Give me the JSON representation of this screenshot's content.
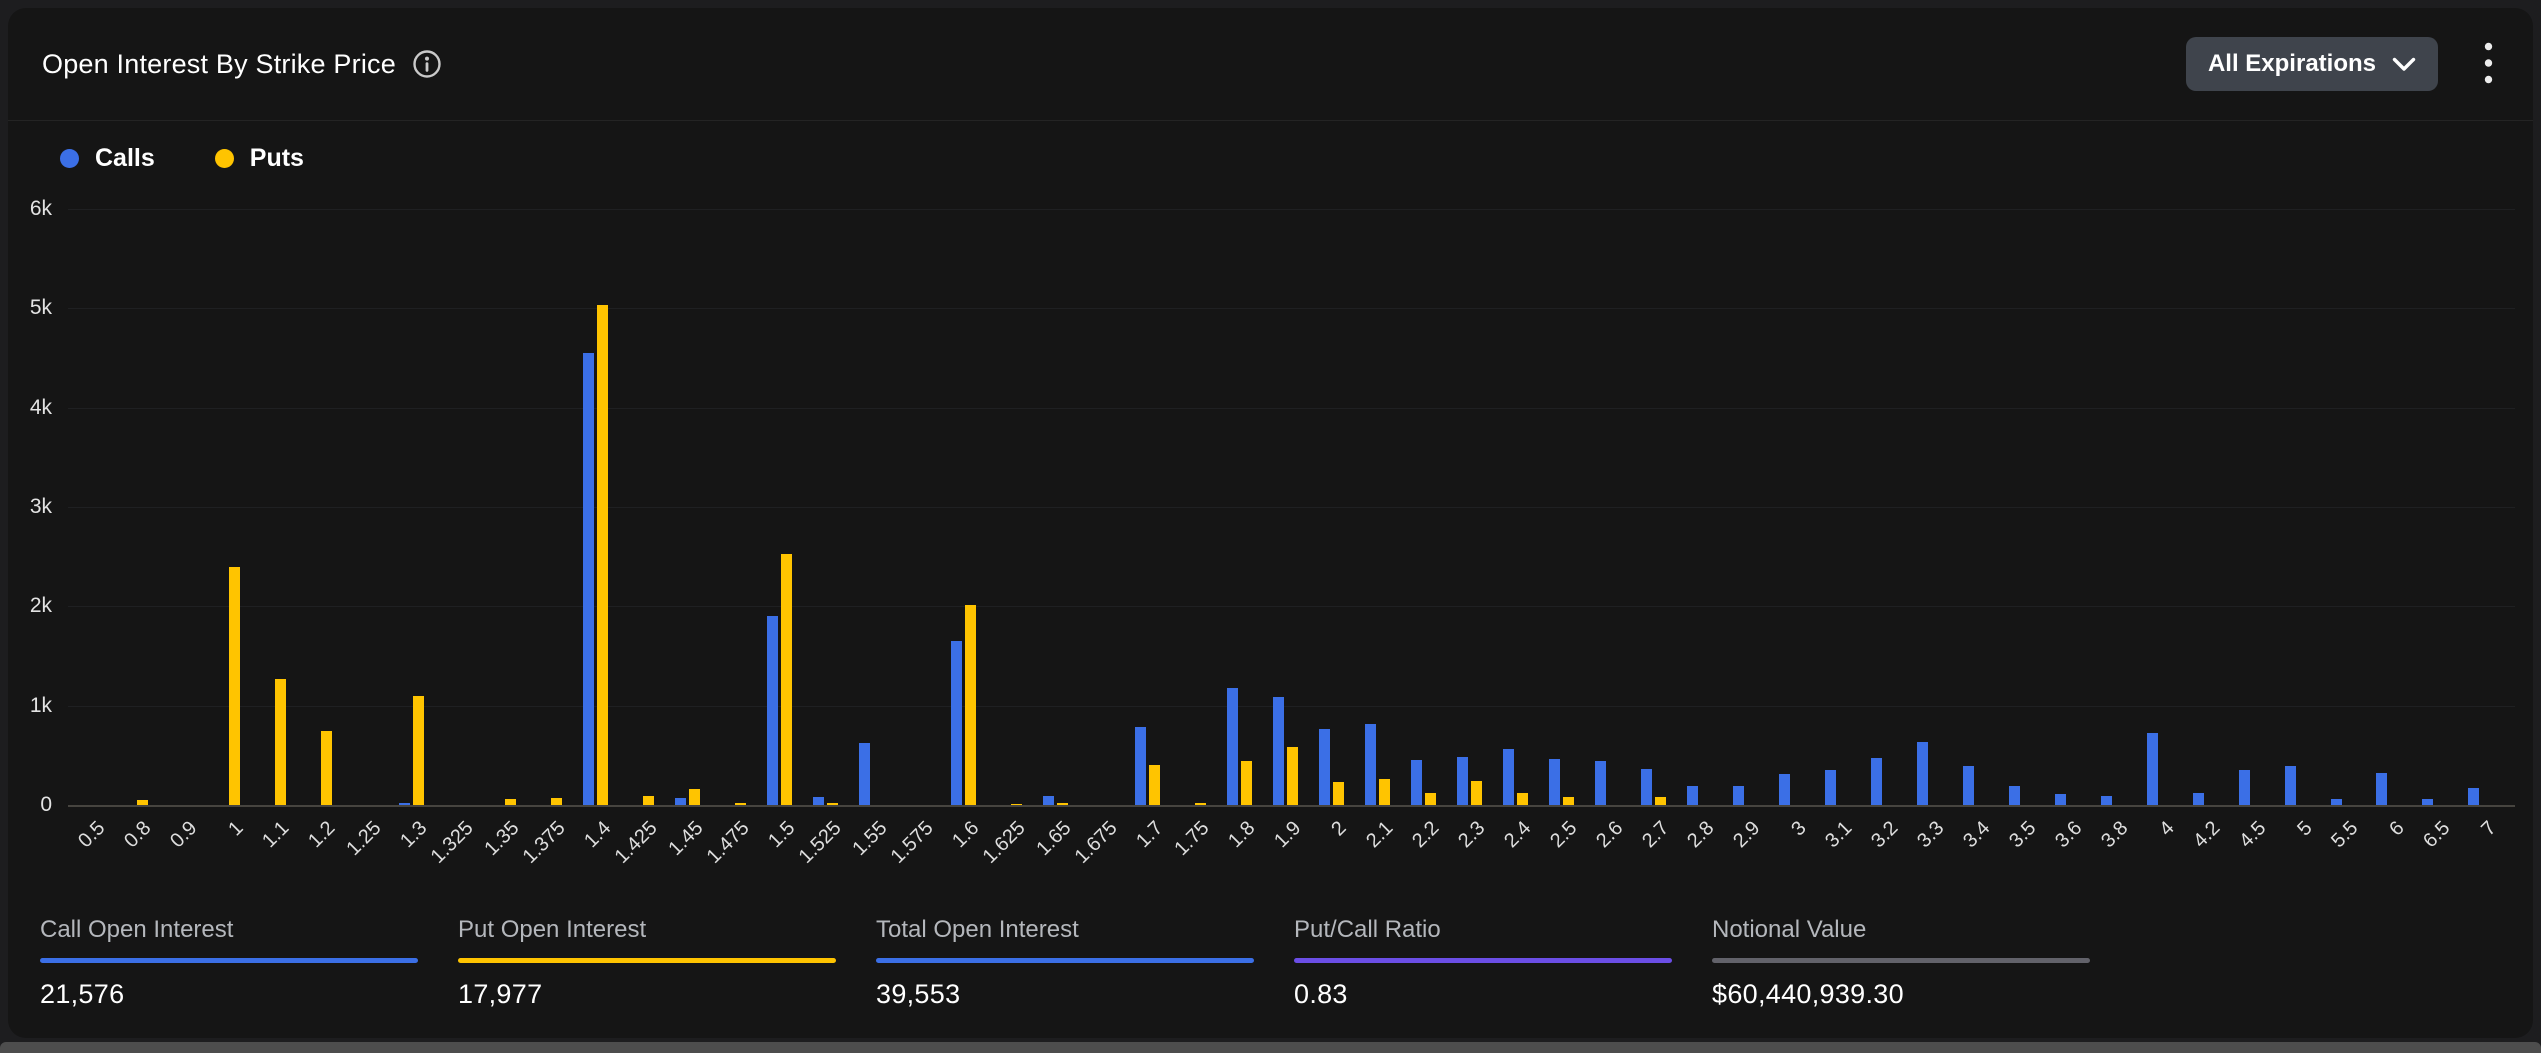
{
  "header": {
    "title": "Open Interest By Strike Price",
    "expiration_filter": "All Expirations"
  },
  "legend": {
    "calls": "Calls",
    "puts": "Puts"
  },
  "colors": {
    "calls": "#3b6fe6",
    "puts": "#ffc400",
    "putcall_accent": "#6b4ee6",
    "notional_accent": "#62626a"
  },
  "chart_data": {
    "type": "bar",
    "title": "Open Interest By Strike Price",
    "xlabel": "Strike Price",
    "ylabel": "Open Interest",
    "ylim": [
      0,
      6000
    ],
    "yticks": [
      "0",
      "1k",
      "2k",
      "3k",
      "4k",
      "5k",
      "6k"
    ],
    "grid": true,
    "legend_position": "top-left",
    "categories": [
      "0.5",
      "0.8",
      "0.9",
      "1",
      "1.1",
      "1.2",
      "1.25",
      "1.3",
      "1.325",
      "1.35",
      "1.375",
      "1.4",
      "1.425",
      "1.45",
      "1.475",
      "1.5",
      "1.525",
      "1.55",
      "1.575",
      "1.6",
      "1.625",
      "1.65",
      "1.675",
      "1.7",
      "1.75",
      "1.8",
      "1.9",
      "2",
      "2.1",
      "2.2",
      "2.3",
      "2.4",
      "2.5",
      "2.6",
      "2.7",
      "2.8",
      "2.9",
      "3",
      "3.1",
      "3.2",
      "3.3",
      "3.4",
      "3.5",
      "3.6",
      "3.8",
      "4",
      "4.2",
      "4.5",
      "5",
      "5.5",
      "6",
      "6.5",
      "7"
    ],
    "series": [
      {
        "name": "Calls",
        "color": "#3b6fe6",
        "values": [
          0,
          0,
          0,
          0,
          0,
          0,
          0,
          20,
          0,
          0,
          0,
          4550,
          0,
          75,
          0,
          1900,
          85,
          620,
          0,
          1650,
          0,
          95,
          0,
          785,
          0,
          1175,
          1090,
          770,
          820,
          450,
          480,
          560,
          460,
          445,
          360,
          190,
          190,
          310,
          355,
          470,
          630,
          390,
          190,
          110,
          90,
          730,
          120,
          355,
          390,
          60,
          320,
          60,
          170
        ]
      },
      {
        "name": "Puts",
        "color": "#ffc400",
        "values": [
          0,
          50,
          0,
          2400,
          1270,
          750,
          0,
          1100,
          0,
          60,
          75,
          5030,
          90,
          160,
          25,
          2530,
          20,
          0,
          0,
          2010,
          15,
          25,
          0,
          400,
          20,
          440,
          580,
          235,
          260,
          120,
          240,
          120,
          85,
          0,
          85,
          0,
          0,
          0,
          0,
          0,
          0,
          0,
          0,
          0,
          0,
          0,
          0,
          0,
          0,
          0,
          0,
          0,
          0
        ]
      }
    ]
  },
  "stats": [
    {
      "label": "Call Open Interest",
      "value": "21,576",
      "accent": "#3b6fe6"
    },
    {
      "label": "Put Open Interest",
      "value": "17,977",
      "accent": "#ffc400"
    },
    {
      "label": "Total Open Interest",
      "value": "39,553",
      "accent": "#3b6fe6"
    },
    {
      "label": "Put/Call Ratio",
      "value": "0.83",
      "accent": "#6b4ee6"
    },
    {
      "label": "Notional Value",
      "value": "$60,440,939.30",
      "accent": "#62626a"
    }
  ]
}
